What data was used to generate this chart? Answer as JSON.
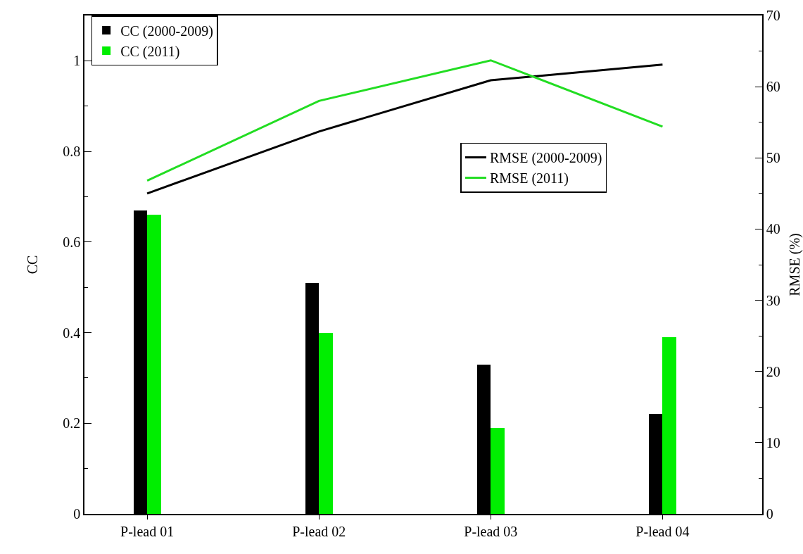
{
  "chart_data": {
    "type": "bar",
    "ylabel": "CC",
    "y2label": "RMSE (%)",
    "categories": [
      "P-lead 01",
      "P-lead 02",
      "P-lead 03",
      "P-lead 04"
    ],
    "series": [
      {
        "name": "CC (2000-2009)",
        "color": "#000000",
        "values": [
          0.67,
          0.51,
          0.33,
          0.22
        ]
      },
      {
        "name": "CC (2011)",
        "color": "#00ee00",
        "values": [
          0.66,
          0.4,
          0.19,
          0.39
        ]
      },
      {
        "name": "RMSE (2000-2009)",
        "type": "line",
        "axis": "y2",
        "color": "#000000",
        "values": [
          45.0,
          53.7,
          60.9,
          63.1
        ]
      },
      {
        "name": "RMSE (2011)",
        "type": "line",
        "axis": "y2",
        "color": "#22dd22",
        "values": [
          46.8,
          58.0,
          63.7,
          54.4
        ]
      }
    ],
    "ylim": [
      0,
      1.1
    ],
    "yticks": [
      0,
      0.2,
      0.4,
      0.6,
      0.8,
      1
    ],
    "y2lim": [
      0,
      70
    ],
    "y2ticks": [
      0,
      10,
      20,
      30,
      40,
      50,
      60,
      70
    ],
    "grid": false,
    "legend": "top left",
    "marker": "none",
    "line_style": "solid"
  }
}
